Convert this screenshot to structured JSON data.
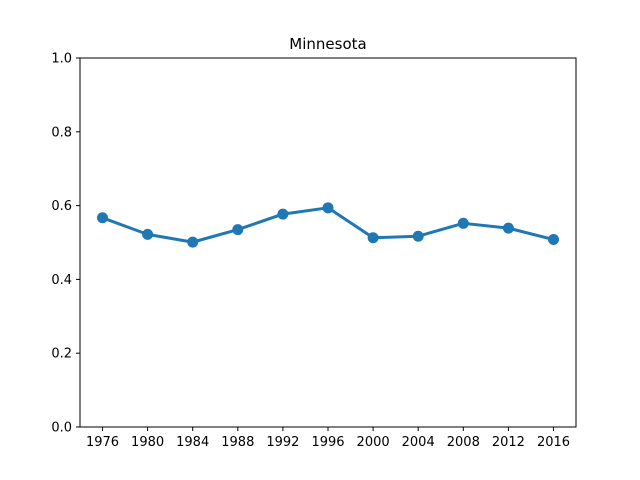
{
  "chart_data": {
    "type": "line",
    "title": "Minnesota",
    "xlabel": "",
    "ylabel": "",
    "categories": [
      "1976",
      "1980",
      "1984",
      "1988",
      "1992",
      "1996",
      "2000",
      "2004",
      "2008",
      "2012",
      "2016"
    ],
    "series": [
      {
        "values": [
          0.567,
          0.522,
          0.501,
          0.535,
          0.577,
          0.594,
          0.513,
          0.517,
          0.552,
          0.539,
          0.508
        ],
        "color": "#1f77b4"
      }
    ],
    "ylim": [
      0,
      1
    ],
    "yticks": [
      "0.0",
      "0.2",
      "0.4",
      "0.6",
      "0.8",
      "1.0"
    ],
    "grid": false,
    "legend": "none"
  }
}
